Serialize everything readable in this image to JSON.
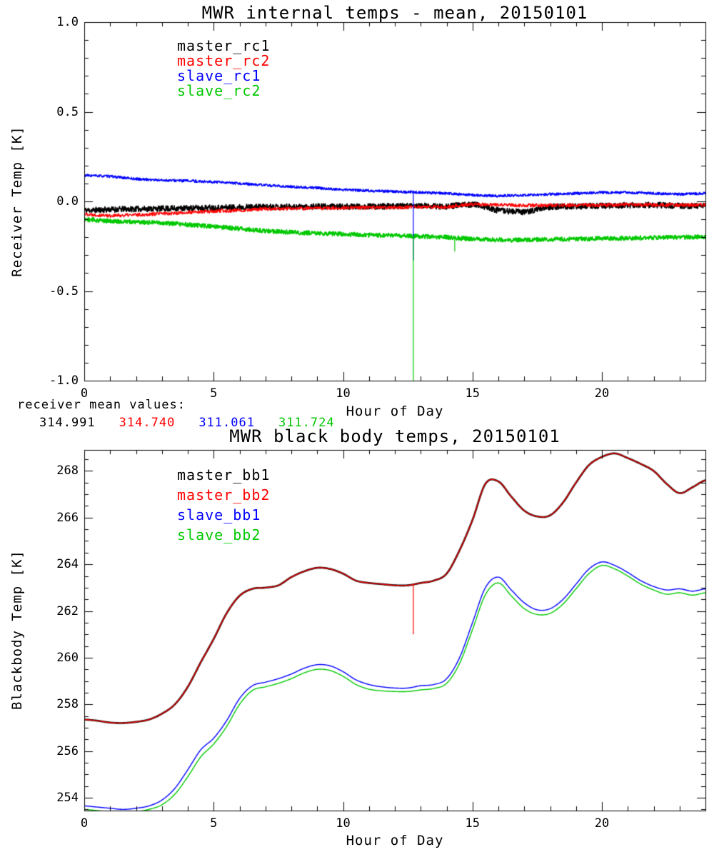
{
  "page": {
    "background": "#ffffff"
  },
  "mean_values": {
    "caption": "receiver mean values:",
    "values": [
      {
        "text": "314.991",
        "color": "#000000"
      },
      {
        "text": "314.740",
        "color": "#ff0000"
      },
      {
        "text": "311.061",
        "color": "#0000ff"
      },
      {
        "text": "311.724",
        "color": "#00c800"
      }
    ]
  },
  "chart_data": [
    {
      "id": "top",
      "type": "line",
      "title": "MWR internal temps - mean, 20150101",
      "xlabel": "Hour of Day",
      "ylabel": "Receiver Temp [K]",
      "xlim": [
        0,
        24
      ],
      "ylim": [
        -1.0,
        1.0
      ],
      "xticks": [
        0,
        5,
        10,
        15,
        20
      ],
      "xtick_labels": [
        "0",
        "5",
        "10",
        "15",
        "20"
      ],
      "xminor_step": 1,
      "yticks": [
        -1.0,
        -0.5,
        0.0,
        0.5,
        1.0
      ],
      "ytick_labels": [
        "-1.0",
        "-0.5",
        "0.0",
        "0.5",
        "1.0"
      ],
      "yminor_step": 0.1,
      "grid": false,
      "legend_position": "upper-left-inside",
      "legend": [
        {
          "label": "master_rc1",
          "color": "#000000"
        },
        {
          "label": "master_rc2",
          "color": "#ff0000"
        },
        {
          "label": "slave_rc1",
          "color": "#0000ff"
        },
        {
          "label": "slave_rc2",
          "color": "#00c800"
        }
      ],
      "x": [
        0,
        1,
        2,
        3,
        4,
        5,
        6,
        7,
        8,
        9,
        10,
        11,
        12,
        13,
        14,
        15,
        16,
        17,
        18,
        19,
        20,
        21,
        22,
        23,
        24
      ],
      "series": [
        {
          "name": "master_rc1",
          "color": "#000000",
          "width": 1.8,
          "noise": 0.016,
          "seed": 11,
          "values": [
            -0.05,
            -0.045,
            -0.042,
            -0.04,
            -0.038,
            -0.035,
            -0.032,
            -0.03,
            -0.03,
            -0.028,
            -0.03,
            -0.028,
            -0.027,
            -0.025,
            -0.028,
            -0.015,
            -0.05,
            -0.06,
            -0.03,
            -0.028,
            -0.025,
            -0.022,
            -0.02,
            -0.025,
            -0.025
          ]
        },
        {
          "name": "master_rc2",
          "color": "#ff0000",
          "width": 1.3,
          "noise": 0.01,
          "seed": 22,
          "values": [
            -0.07,
            -0.08,
            -0.075,
            -0.068,
            -0.062,
            -0.055,
            -0.05,
            -0.042,
            -0.04,
            -0.038,
            -0.036,
            -0.035,
            -0.033,
            -0.032,
            -0.03,
            -0.015,
            -0.02,
            -0.022,
            -0.022,
            -0.02,
            -0.02,
            -0.018,
            -0.02,
            -0.02,
            -0.02
          ]
        },
        {
          "name": "slave_rc1",
          "color": "#0000ff",
          "width": 1.5,
          "noise": 0.007,
          "seed": 33,
          "values": [
            0.145,
            0.14,
            0.125,
            0.118,
            0.115,
            0.108,
            0.1,
            0.09,
            0.082,
            0.075,
            0.065,
            0.06,
            0.055,
            0.05,
            0.045,
            0.035,
            0.03,
            0.035,
            0.04,
            0.045,
            0.05,
            0.05,
            0.045,
            0.04,
            0.045
          ]
        },
        {
          "name": "slave_rc2",
          "color": "#00c800",
          "width": 1.8,
          "noise": 0.012,
          "seed": 44,
          "values": [
            -0.1,
            -0.11,
            -0.115,
            -0.12,
            -0.13,
            -0.14,
            -0.152,
            -0.165,
            -0.172,
            -0.178,
            -0.182,
            -0.188,
            -0.19,
            -0.195,
            -0.2,
            -0.21,
            -0.215,
            -0.215,
            -0.212,
            -0.21,
            -0.207,
            -0.205,
            -0.202,
            -0.2,
            -0.197
          ]
        }
      ],
      "spikes": [
        {
          "series": "slave_rc1",
          "hour": 12.7,
          "to": -0.33
        },
        {
          "series": "slave_rc2",
          "hour": 12.7,
          "to": -1.0
        },
        {
          "series": "slave_rc2",
          "hour": 14.3,
          "to": -0.28
        }
      ]
    },
    {
      "id": "bottom",
      "type": "line",
      "title": "MWR black body temps, 20150101",
      "xlabel": "Hour of Day",
      "ylabel": "Blackbody Temp [K]",
      "xlim": [
        0,
        24
      ],
      "ylim": [
        253.45,
        268.9
      ],
      "xticks": [
        0,
        5,
        10,
        15,
        20
      ],
      "xtick_labels": [
        "0",
        "5",
        "10",
        "15",
        "20"
      ],
      "xminor_step": 1,
      "yticks": [
        254,
        256,
        258,
        260,
        262,
        264,
        266,
        268
      ],
      "ytick_labels": [
        "254",
        "256",
        "258",
        "260",
        "262",
        "264",
        "266",
        "268"
      ],
      "yminor_step": 0.5,
      "grid": false,
      "legend_position": "upper-left-inside",
      "legend": [
        {
          "label": "master_bb1",
          "color": "#000000"
        },
        {
          "label": "master_bb2",
          "color": "#ff0000"
        },
        {
          "label": "slave_bb1",
          "color": "#0000ff"
        },
        {
          "label": "slave_bb2",
          "color": "#00c800"
        }
      ],
      "x": [
        0,
        0.5,
        1,
        1.5,
        2,
        2.5,
        3,
        3.5,
        4,
        4.5,
        5,
        5.5,
        6,
        6.5,
        7,
        7.5,
        8,
        8.5,
        9,
        9.5,
        10,
        10.5,
        11,
        11.5,
        12,
        12.5,
        13,
        13.5,
        14,
        14.5,
        15,
        15.5,
        16,
        16.5,
        17,
        17.5,
        18,
        18.5,
        19,
        19.5,
        20,
        20.5,
        21,
        21.5,
        22,
        22.5,
        23,
        23.5,
        24
      ],
      "series": [
        {
          "name": "master_bb1",
          "color": "#000000",
          "width": 2.6,
          "smooth": true,
          "values": [
            257.35,
            257.3,
            257.22,
            257.2,
            257.25,
            257.35,
            257.6,
            258.0,
            258.75,
            259.8,
            260.8,
            261.9,
            262.65,
            262.95,
            263.0,
            263.1,
            263.45,
            263.7,
            263.85,
            263.8,
            263.6,
            263.3,
            263.2,
            263.15,
            263.1,
            263.1,
            263.2,
            263.3,
            263.6,
            264.6,
            265.9,
            267.45,
            267.55,
            266.9,
            266.3,
            266.05,
            266.1,
            266.65,
            267.5,
            268.25,
            268.6,
            268.75,
            268.55,
            268.3,
            268.0,
            267.45,
            267.05,
            267.3,
            267.6
          ]
        },
        {
          "name": "master_bb2",
          "color": "#ff0000",
          "width": 1.3,
          "smooth": true,
          "values": [
            257.35,
            257.3,
            257.22,
            257.2,
            257.25,
            257.35,
            257.6,
            258.0,
            258.75,
            259.8,
            260.8,
            261.9,
            262.65,
            262.95,
            263.0,
            263.1,
            263.45,
            263.7,
            263.85,
            263.8,
            263.6,
            263.3,
            263.2,
            263.15,
            263.1,
            263.1,
            263.2,
            263.3,
            263.6,
            264.6,
            265.9,
            267.45,
            267.55,
            266.9,
            266.3,
            266.05,
            266.1,
            266.65,
            267.5,
            268.25,
            268.6,
            268.75,
            268.55,
            268.3,
            268.0,
            267.45,
            267.05,
            267.3,
            267.6
          ]
        },
        {
          "name": "slave_bb1",
          "color": "#0000ff",
          "width": 1.4,
          "smooth": true,
          "values": [
            253.65,
            253.6,
            253.55,
            253.5,
            253.55,
            253.65,
            253.9,
            254.4,
            255.2,
            256.05,
            256.55,
            257.3,
            258.25,
            258.8,
            258.95,
            259.1,
            259.3,
            259.55,
            259.7,
            259.65,
            259.4,
            259.05,
            258.85,
            258.75,
            258.7,
            258.7,
            258.8,
            258.85,
            259.1,
            260.0,
            261.5,
            263.0,
            263.45,
            262.9,
            262.35,
            262.05,
            262.1,
            262.5,
            263.15,
            263.8,
            264.1,
            263.95,
            263.65,
            263.3,
            263.05,
            262.9,
            262.95,
            262.85,
            262.95
          ]
        },
        {
          "name": "slave_bb2",
          "color": "#00c800",
          "width": 1.4,
          "smooth": true,
          "values": [
            253.5,
            253.45,
            253.4,
            253.38,
            253.4,
            253.5,
            253.7,
            254.15,
            254.9,
            255.75,
            256.3,
            257.05,
            258.0,
            258.6,
            258.75,
            258.9,
            259.1,
            259.35,
            259.5,
            259.45,
            259.2,
            258.85,
            258.65,
            258.58,
            258.55,
            258.55,
            258.62,
            258.68,
            258.9,
            259.75,
            261.2,
            262.7,
            263.2,
            262.65,
            262.1,
            261.85,
            261.9,
            262.3,
            262.95,
            263.6,
            263.95,
            263.8,
            263.5,
            263.15,
            262.9,
            262.72,
            262.78,
            262.68,
            262.78
          ]
        }
      ],
      "spikes": [
        {
          "series": "master_bb2",
          "hour": 12.7,
          "to": 261.0
        }
      ]
    }
  ]
}
